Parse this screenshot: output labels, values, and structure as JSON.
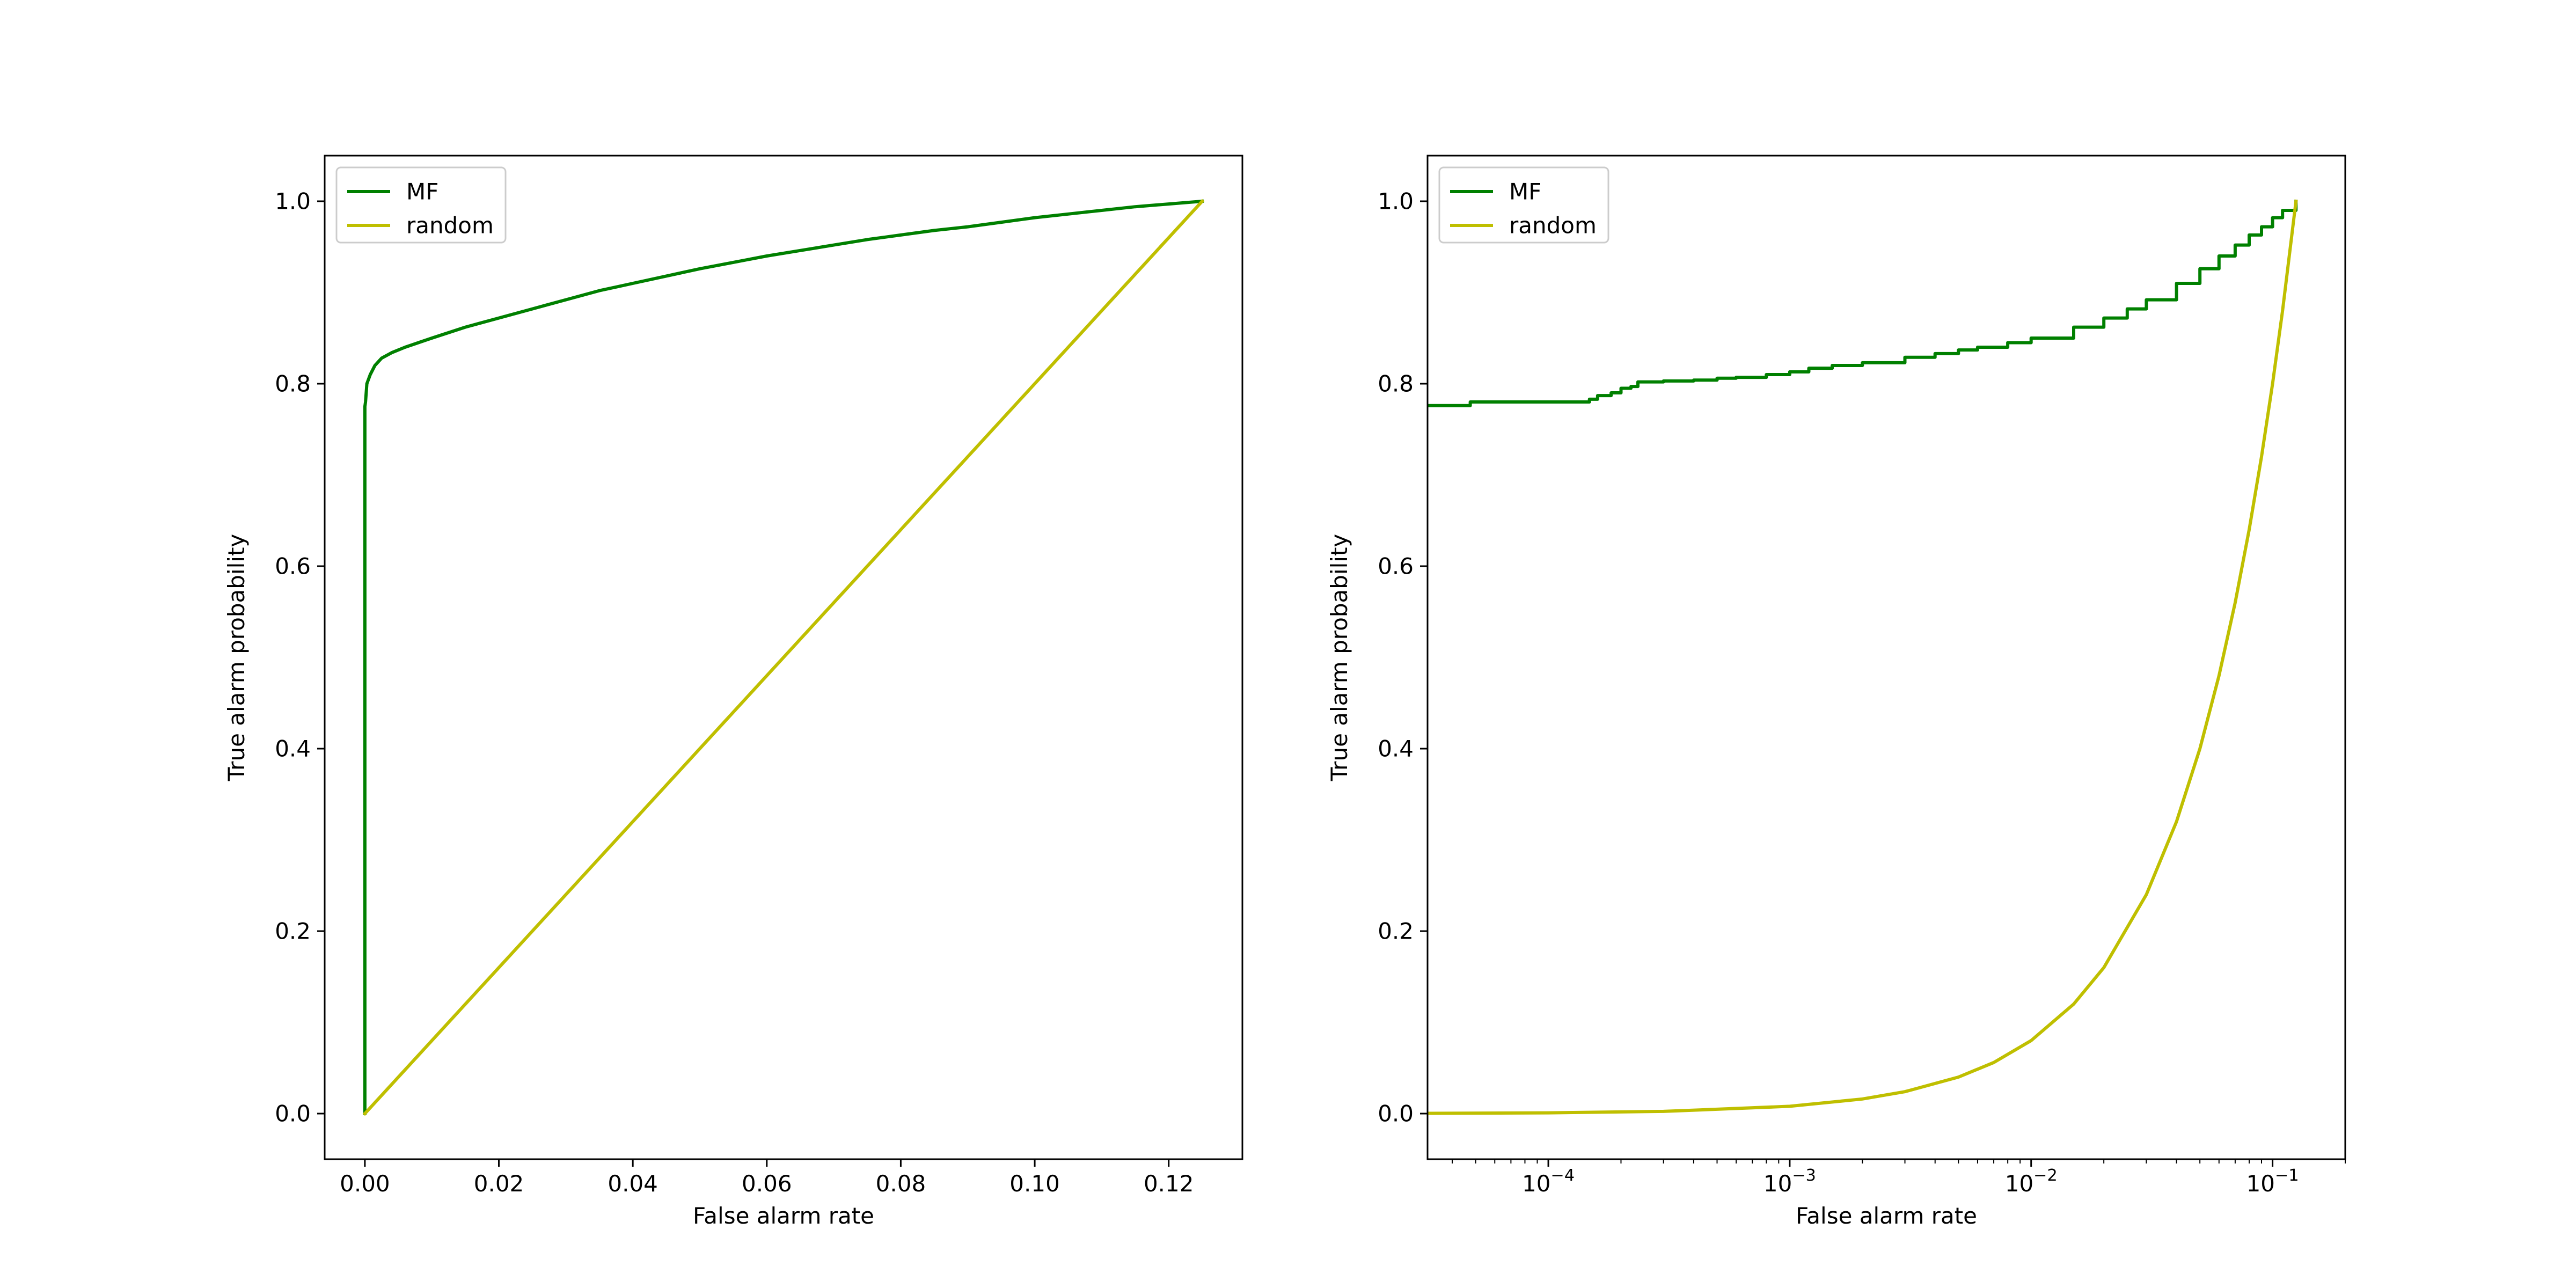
{
  "colors": {
    "mf": "#008000",
    "random": "#bfbf00",
    "axes": "#000000",
    "legend_border": "#cccccc"
  },
  "chart_data": [
    {
      "type": "line",
      "title": "",
      "xlabel": "False alarm rate",
      "ylabel": "True alarm probability",
      "xscale": "linear",
      "xlim": [
        -0.006,
        0.131
      ],
      "ylim": [
        -0.05,
        1.05
      ],
      "xticks": [
        0.0,
        0.02,
        0.04,
        0.06,
        0.08,
        0.1,
        0.12
      ],
      "xtick_labels": [
        "0.00",
        "0.02",
        "0.04",
        "0.06",
        "0.08",
        "0.10",
        "0.12"
      ],
      "yticks": [
        0.0,
        0.2,
        0.4,
        0.6,
        0.8,
        1.0
      ],
      "ytick_labels": [
        "0.0",
        "0.2",
        "0.4",
        "0.6",
        "0.8",
        "1.0"
      ],
      "grid": false,
      "legend": "upper-left",
      "series": [
        {
          "name": "MF",
          "color": "#008000",
          "x": [
            0.0,
            0.0,
            0.0,
            0.0001,
            0.0003,
            0.0008,
            0.0015,
            0.0025,
            0.004,
            0.006,
            0.008,
            0.01,
            0.015,
            0.02,
            0.025,
            0.03,
            0.035,
            0.04,
            0.045,
            0.05,
            0.055,
            0.06,
            0.065,
            0.07,
            0.075,
            0.08,
            0.085,
            0.09,
            0.095,
            0.1,
            0.105,
            0.11,
            0.115,
            0.12,
            0.125
          ],
          "y": [
            0.0,
            0.5,
            0.775,
            0.78,
            0.8,
            0.81,
            0.82,
            0.828,
            0.834,
            0.84,
            0.845,
            0.85,
            0.862,
            0.872,
            0.882,
            0.892,
            0.902,
            0.91,
            0.918,
            0.926,
            0.933,
            0.94,
            0.946,
            0.952,
            0.958,
            0.963,
            0.968,
            0.972,
            0.977,
            0.982,
            0.986,
            0.99,
            0.994,
            0.997,
            1.0
          ]
        },
        {
          "name": "random",
          "color": "#bfbf00",
          "x": [
            0.0,
            0.125
          ],
          "y": [
            0.0,
            1.0
          ]
        }
      ]
    },
    {
      "type": "line",
      "title": "",
      "xlabel": "False alarm rate",
      "ylabel": "True alarm probability",
      "xscale": "log",
      "xlim": [
        3.16e-05,
        0.2
      ],
      "ylim": [
        -0.05,
        1.05
      ],
      "xticks": [
        0.0001,
        0.001,
        0.01,
        0.1
      ],
      "xtick_labels": [
        "10",
        "10",
        "10",
        "10"
      ],
      "xtick_exponents": [
        "−4",
        "−3",
        "−2",
        "−1"
      ],
      "yticks": [
        0.0,
        0.2,
        0.4,
        0.6,
        0.8,
        1.0
      ],
      "ytick_labels": [
        "0.0",
        "0.2",
        "0.4",
        "0.6",
        "0.8",
        "1.0"
      ],
      "grid": false,
      "legend": "upper-left",
      "series": [
        {
          "name": "MF",
          "color": "#008000",
          "step": true,
          "x": [
            3.16e-05,
            4.75e-05,
            0.000148,
            0.00016,
            0.000182,
            0.0002,
            0.00022,
            0.000235,
            0.0003,
            0.0004,
            0.0005,
            0.0006,
            0.0008,
            0.001,
            0.0012,
            0.0015,
            0.002,
            0.003,
            0.004,
            0.005,
            0.006,
            0.008,
            0.01,
            0.015,
            0.02,
            0.025,
            0.03,
            0.04,
            0.05,
            0.06,
            0.07,
            0.08,
            0.09,
            0.1,
            0.11,
            0.125
          ],
          "y": [
            0.776,
            0.78,
            0.783,
            0.787,
            0.79,
            0.795,
            0.797,
            0.802,
            0.803,
            0.804,
            0.806,
            0.807,
            0.81,
            0.813,
            0.817,
            0.82,
            0.823,
            0.829,
            0.833,
            0.837,
            0.84,
            0.845,
            0.85,
            0.862,
            0.872,
            0.882,
            0.892,
            0.91,
            0.926,
            0.94,
            0.952,
            0.963,
            0.972,
            0.982,
            0.99,
            1.0
          ]
        },
        {
          "name": "random",
          "color": "#bfbf00",
          "x": [
            3.16e-05,
            0.0001,
            0.0003,
            0.001,
            0.002,
            0.003,
            0.005,
            0.007,
            0.01,
            0.015,
            0.02,
            0.03,
            0.04,
            0.05,
            0.06,
            0.07,
            0.08,
            0.09,
            0.1,
            0.11,
            0.125
          ],
          "y": [
            0.0003,
            0.0008,
            0.0024,
            0.008,
            0.016,
            0.024,
            0.04,
            0.056,
            0.08,
            0.12,
            0.16,
            0.24,
            0.32,
            0.4,
            0.48,
            0.56,
            0.64,
            0.72,
            0.8,
            0.88,
            1.0
          ]
        }
      ]
    }
  ]
}
